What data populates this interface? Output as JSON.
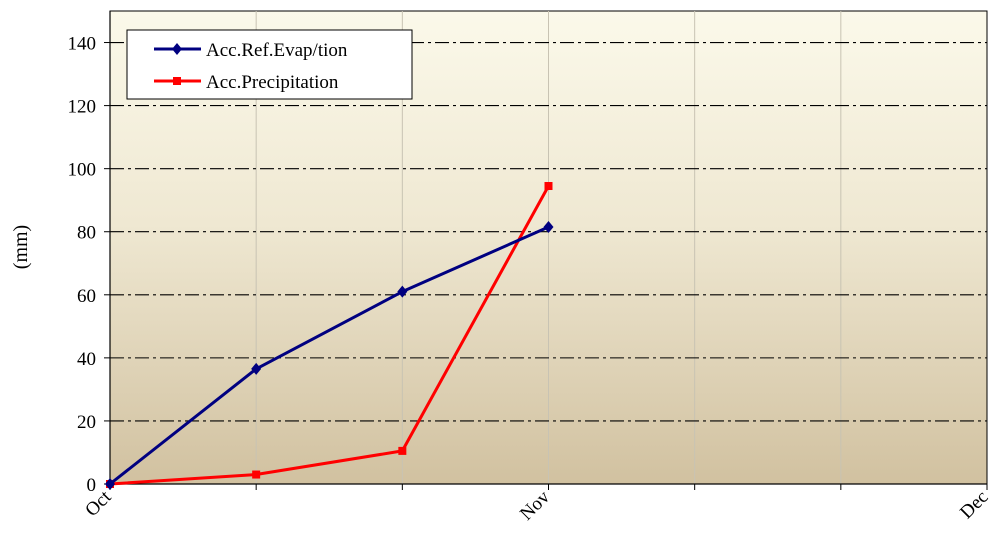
{
  "chart_data": {
    "type": "line",
    "title": "",
    "xlabel": "",
    "ylabel": "(mm)",
    "ylim": [
      0,
      150
    ],
    "yticks": [
      0,
      20,
      40,
      60,
      80,
      100,
      120,
      140
    ],
    "xlim": [
      0,
      60
    ],
    "xticks": [
      {
        "value": 0,
        "label": "Oct"
      },
      {
        "value": 30,
        "label": "Nov"
      },
      {
        "value": 60,
        "label": "Dec"
      }
    ],
    "x_grid": [
      10,
      20,
      30,
      40,
      50,
      60
    ],
    "grid": true,
    "legend": {
      "position": "top-left"
    },
    "series": [
      {
        "name": "Acc.Ref.Evap/tion",
        "color": "#000080",
        "marker": "diamond",
        "x": [
          0,
          10,
          20,
          30
        ],
        "values": [
          0,
          36.5,
          61,
          81.5
        ]
      },
      {
        "name": "Acc.Precipitation",
        "color": "#ff0000",
        "marker": "square",
        "x": [
          0,
          10,
          20,
          30
        ],
        "values": [
          0,
          3,
          10.5,
          94.5
        ]
      }
    ]
  }
}
